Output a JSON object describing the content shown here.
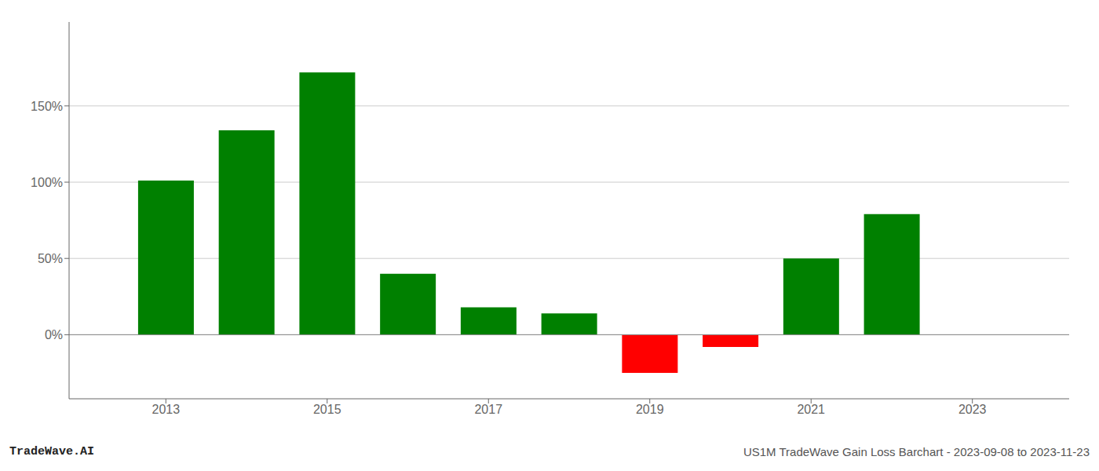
{
  "chart_data": {
    "type": "bar",
    "x": [
      2013,
      2014,
      2015,
      2016,
      2017,
      2018,
      2019,
      2020,
      2021,
      2022
    ],
    "values": [
      1.01,
      1.34,
      1.72,
      0.4,
      0.18,
      0.14,
      -0.25,
      -0.08,
      0.5,
      0.79
    ],
    "colors": [
      "#008000",
      "#008000",
      "#008000",
      "#008000",
      "#008000",
      "#008000",
      "#ff0000",
      "#ff0000",
      "#008000",
      "#008000"
    ],
    "xlim": [
      2011.8,
      2024.2
    ],
    "xticks": [
      2013,
      2015,
      2017,
      2019,
      2021,
      2023
    ],
    "ylim": [
      -0.42,
      2.05
    ],
    "yticks": [
      {
        "value": 0.0,
        "label": "0%"
      },
      {
        "value": 0.5,
        "label": "50%"
      },
      {
        "value": 1.0,
        "label": "100%"
      },
      {
        "value": 1.5,
        "label": "150%"
      }
    ],
    "grid": "y",
    "annotations": [
      "TradeWave.AI",
      "US1M TradeWave Gain Loss Barchart - 2023-09-08 to 2023-11-23"
    ]
  }
}
